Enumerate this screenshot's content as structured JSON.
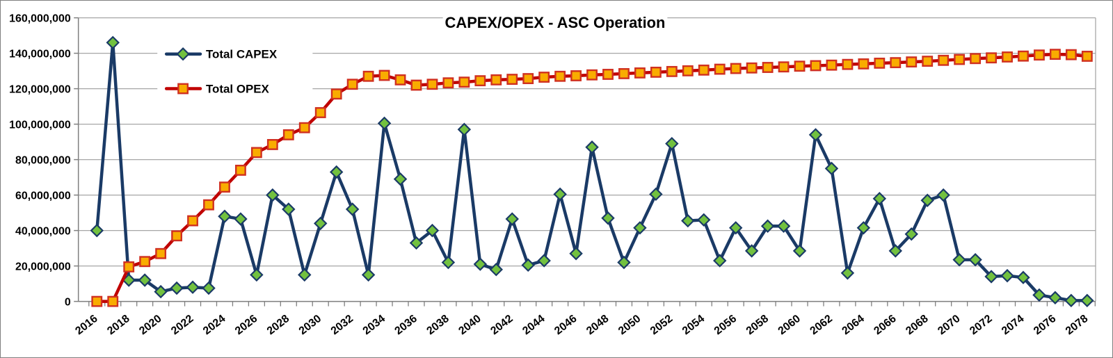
{
  "chart_data": {
    "type": "line",
    "title": "CAPEX/OPEX - ASC Operation",
    "xlabel": "",
    "ylabel": "",
    "ylim": [
      0,
      160000000
    ],
    "ytick_step": 20000000,
    "xlabel_every_years": 2,
    "grid": true,
    "legend_position": "upper-left",
    "background": "#FFFFFF",
    "grid_color": "#A6A6A6",
    "axis_color": "#7F7F7F",
    "x": [
      2016,
      2017,
      2018,
      2019,
      2020,
      2021,
      2022,
      2023,
      2024,
      2025,
      2026,
      2027,
      2028,
      2029,
      2030,
      2031,
      2032,
      2033,
      2034,
      2035,
      2036,
      2037,
      2038,
      2039,
      2040,
      2041,
      2042,
      2043,
      2044,
      2045,
      2046,
      2047,
      2048,
      2049,
      2050,
      2051,
      2052,
      2053,
      2054,
      2055,
      2056,
      2057,
      2058,
      2059,
      2060,
      2061,
      2062,
      2063,
      2064,
      2065,
      2066,
      2067,
      2068,
      2069,
      2070,
      2071,
      2072,
      2073,
      2074,
      2075,
      2076,
      2077,
      2078
    ],
    "series": [
      {
        "name": "Total CAPEX",
        "marker": "diamond",
        "line_color": "#1A3A66",
        "marker_fill": "#72C13F",
        "marker_border": "#1A3A66",
        "values": [
          40000000,
          146000000,
          12000000,
          12000000,
          5500000,
          7500000,
          8000000,
          7500000,
          48000000,
          46500000,
          15000000,
          60000000,
          52000000,
          15000000,
          44000000,
          73000000,
          52000000,
          15000000,
          100500000,
          69000000,
          33000000,
          40000000,
          22000000,
          97000000,
          21000000,
          18000000,
          46500000,
          20500000,
          23000000,
          60500000,
          27000000,
          87000000,
          47000000,
          22000000,
          41500000,
          60500000,
          89000000,
          45500000,
          46000000,
          23000000,
          41500000,
          28500000,
          42500000,
          42500000,
          28500000,
          94000000,
          75000000,
          16000000,
          41500000,
          58000000,
          28500000,
          38000000,
          57000000,
          60000000,
          23500000,
          23500000,
          14000000,
          14500000,
          13500000,
          3600000,
          2100000,
          500000,
          500000
        ]
      },
      {
        "name": "Total OPEX",
        "marker": "square",
        "line_color": "#C00000",
        "marker_fill": "#F9AC00",
        "marker_border": "#D03020",
        "values": [
          0,
          0,
          19500000,
          22500000,
          27000000,
          37000000,
          45500000,
          54500000,
          64500000,
          74000000,
          84000000,
          88500000,
          94000000,
          98000000,
          106500000,
          117000000,
          122500000,
          127000000,
          127500000,
          125000000,
          122000000,
          122500000,
          123300000,
          123700000,
          124500000,
          125000000,
          125300000,
          125700000,
          126500000,
          127000000,
          127300000,
          127800000,
          128100000,
          128500000,
          128900000,
          129300000,
          129700000,
          130100000,
          130500000,
          131000000,
          131400000,
          131700000,
          132000000,
          132300000,
          132700000,
          133000000,
          133300000,
          133700000,
          134000000,
          134400000,
          134700000,
          135100000,
          135500000,
          136000000,
          136500000,
          137000000,
          137400000,
          137900000,
          138400000,
          139000000,
          139400000,
          139200000,
          138300000
        ]
      }
    ]
  },
  "legend": {
    "items": [
      {
        "label": "Total CAPEX"
      },
      {
        "label": "Total OPEX"
      }
    ]
  }
}
